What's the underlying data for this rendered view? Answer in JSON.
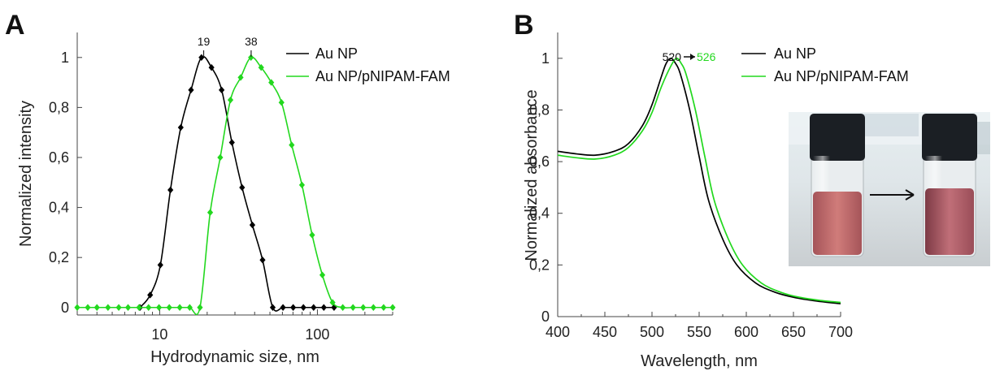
{
  "chart_data": [
    {
      "panel": "A",
      "type": "line",
      "xlabel": "Hydrodynamic size, nm",
      "ylabel": "Normalized intensity",
      "xscale": "log",
      "xlim": [
        3,
        300
      ],
      "ylim": [
        -0.03,
        1.1
      ],
      "xticks": [
        {
          "value": 10,
          "label": "10"
        },
        {
          "value": 100,
          "label": "100"
        }
      ],
      "yticks": [
        {
          "value": 0,
          "label": "0"
        },
        {
          "value": 0.2,
          "label": "0,2"
        },
        {
          "value": 0.4,
          "label": "0,4"
        },
        {
          "value": 0.6,
          "label": "0,6"
        },
        {
          "value": 0.8,
          "label": "0,8"
        },
        {
          "value": 1,
          "label": "1"
        }
      ],
      "peak_annotations": [
        {
          "x": 19,
          "label": "19"
        },
        {
          "x": 38,
          "label": "38"
        }
      ],
      "legend_position": "top-right",
      "series": [
        {
          "name": "Au NP",
          "color": "#000000",
          "x": [
            7.5,
            8.7,
            10.1,
            11.7,
            13.6,
            15.8,
            18.4,
            21.3,
            24.7,
            28.7,
            33.3,
            38.7,
            44.9,
            52.1,
            60.5,
            70.2,
            81.5,
            94.6,
            109.8,
            127.5
          ],
          "y": [
            0.0,
            0.05,
            0.17,
            0.47,
            0.72,
            0.87,
            1.0,
            0.96,
            0.87,
            0.66,
            0.48,
            0.33,
            0.19,
            0.0,
            0.0,
            0.0,
            0.0,
            0.0,
            0.0,
            0.0
          ]
        },
        {
          "name": "Au NP/pNIPAM-FAM",
          "color": "#22d81e",
          "x": [
            3.0,
            3.5,
            4.0,
            4.7,
            5.5,
            6.3,
            7.4,
            8.5,
            9.9,
            11.5,
            13.4,
            15.5,
            18.0,
            20.9,
            24.2,
            28.1,
            32.6,
            37.9,
            44.0,
            51.0,
            59.2,
            68.7,
            79.8,
            92.6,
            107.5,
            124.8,
            144.8,
            168.1,
            195.1,
            226.5,
            262.9,
            300.0
          ],
          "y": [
            0,
            0,
            0,
            0,
            0,
            0,
            0,
            0,
            0,
            0,
            0,
            0.0,
            0.0,
            0.38,
            0.6,
            0.83,
            0.92,
            1.0,
            0.96,
            0.9,
            0.82,
            0.65,
            0.49,
            0.29,
            0.13,
            0.02,
            0.0,
            0.0,
            0.0,
            0.0,
            0.0,
            0.0
          ]
        }
      ]
    },
    {
      "panel": "B",
      "type": "line",
      "xlabel": "Wavelength, nm",
      "ylabel": "Normalized absorbance",
      "xlim": [
        400,
        700
      ],
      "ylim": [
        0,
        1.1
      ],
      "xticks": [
        {
          "value": 400,
          "label": "400"
        },
        {
          "value": 450,
          "label": "450"
        },
        {
          "value": 500,
          "label": "500"
        },
        {
          "value": 550,
          "label": "550"
        },
        {
          "value": 600,
          "label": "600"
        },
        {
          "value": 650,
          "label": "650"
        },
        {
          "value": 700,
          "label": "700"
        }
      ],
      "yticks": [
        {
          "value": 0,
          "label": "0"
        },
        {
          "value": 0.2,
          "label": "0,2"
        },
        {
          "value": 0.4,
          "label": "0,4"
        },
        {
          "value": 0.6,
          "label": "0,6"
        },
        {
          "value": 0.8,
          "label": "0,8"
        },
        {
          "value": 1,
          "label": "1"
        }
      ],
      "peak_annotation": {
        "from_label": "520",
        "to_label": "526"
      },
      "legend_position": "top-right",
      "series": [
        {
          "name": "Au NP",
          "color": "#000000",
          "x": [
            400,
            420,
            440,
            460,
            475,
            490,
            500,
            510,
            515,
            520,
            525,
            530,
            540,
            550,
            560,
            575,
            590,
            610,
            630,
            650,
            675,
            700
          ],
          "y": [
            0.64,
            0.63,
            0.625,
            0.64,
            0.67,
            0.74,
            0.82,
            0.93,
            0.98,
            1.0,
            0.98,
            0.94,
            0.8,
            0.62,
            0.45,
            0.3,
            0.2,
            0.13,
            0.095,
            0.075,
            0.06,
            0.05
          ]
        },
        {
          "name": "Au NP/pNIPAM-FAM",
          "color": "#22d81e",
          "x": [
            400,
            420,
            440,
            460,
            475,
            490,
            500,
            510,
            520,
            526,
            531,
            536,
            546,
            556,
            566,
            581,
            596,
            616,
            636,
            656,
            680,
            700
          ],
          "y": [
            0.625,
            0.615,
            0.61,
            0.625,
            0.655,
            0.72,
            0.79,
            0.89,
            0.97,
            1.0,
            0.98,
            0.94,
            0.8,
            0.62,
            0.45,
            0.3,
            0.2,
            0.13,
            0.095,
            0.075,
            0.062,
            0.055
          ]
        }
      ]
    }
  ],
  "panels": {
    "a_letter": "A",
    "b_letter": "B"
  },
  "photo": {
    "vial_cap_color": "#1b1f24",
    "liquid_left_color": "#c36b6b",
    "liquid_right_color": "#b95f6d",
    "background_color": "#dde6ea"
  }
}
